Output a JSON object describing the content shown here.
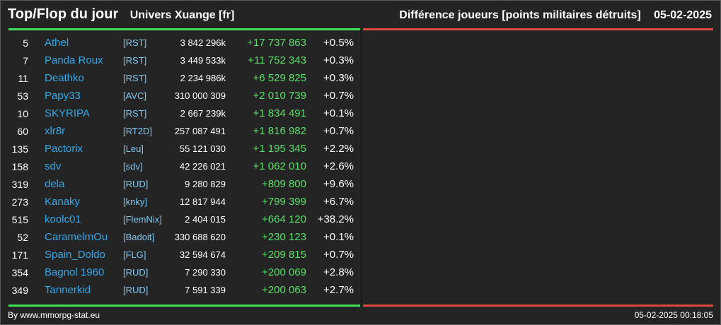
{
  "header": {
    "title": "Top/Flop du jour",
    "universe": "Univers Xuange [fr]",
    "metric": "Différence joueurs [points militaires détruits]",
    "date": "05-02-2025"
  },
  "colors": {
    "top_bar": "#44e05a",
    "flop_bar": "#e0483d",
    "player_link": "#35a7e8",
    "alliance_tag": "#7fc8f2",
    "positive_diff": "#5ae06a"
  },
  "top": [
    {
      "rank": "5",
      "player": "Athel",
      "alliance": "[RST]",
      "points": "3 842 296k",
      "diff": "+17 737 863",
      "pct": "+0.5%"
    },
    {
      "rank": "7",
      "player": "Panda Roux",
      "alliance": "[RST]",
      "points": "3 449 533k",
      "diff": "+11 752 343",
      "pct": "+0.3%"
    },
    {
      "rank": "11",
      "player": "Deathko",
      "alliance": "[RST]",
      "points": "2 234 986k",
      "diff": "+6 529 825",
      "pct": "+0.3%"
    },
    {
      "rank": "53",
      "player": "Papy33",
      "alliance": "[AVC]",
      "points": "310 000 309",
      "diff": "+2 010 739",
      "pct": "+0.7%"
    },
    {
      "rank": "10",
      "player": "SKYRIPA",
      "alliance": "[RST]",
      "points": "2 667 239k",
      "diff": "+1 834 491",
      "pct": "+0.1%"
    },
    {
      "rank": "60",
      "player": "xlr8r",
      "alliance": "[RT2D]",
      "points": "257 087 491",
      "diff": "+1 816 982",
      "pct": "+0.7%"
    },
    {
      "rank": "135",
      "player": "Pactorix",
      "alliance": "[Leu]",
      "points": "55 121 030",
      "diff": "+1 195 345",
      "pct": "+2.2%"
    },
    {
      "rank": "158",
      "player": "sdv",
      "alliance": "[sdv]",
      "points": "42 226 021",
      "diff": "+1 062 010",
      "pct": "+2.6%"
    },
    {
      "rank": "319",
      "player": "dela",
      "alliance": "[RUD]",
      "points": "9 280 829",
      "diff": "+809 800",
      "pct": "+9.6%"
    },
    {
      "rank": "273",
      "player": "Kanaky",
      "alliance": "[knky]",
      "points": "12 817 944",
      "diff": "+799 399",
      "pct": "+6.7%"
    },
    {
      "rank": "515",
      "player": "koolc01",
      "alliance": "[FlemNix]",
      "points": "2 404 015",
      "diff": "+664 120",
      "pct": "+38.2%"
    },
    {
      "rank": "52",
      "player": "CaramelmOu",
      "alliance": "[Badoit]",
      "points": "330 688 620",
      "diff": "+230 123",
      "pct": "+0.1%"
    },
    {
      "rank": "171",
      "player": "Spain_Doldo",
      "alliance": "[FLG]",
      "points": "32 594 674",
      "diff": "+209 815",
      "pct": "+0.7%"
    },
    {
      "rank": "354",
      "player": "Bagnol 1960",
      "alliance": "[RUD]",
      "points": "7 290 330",
      "diff": "+200 069",
      "pct": "+2.8%"
    },
    {
      "rank": "349",
      "player": "Tannerkid",
      "alliance": "[RUD]",
      "points": "7 591 339",
      "diff": "+200 063",
      "pct": "+2.7%"
    }
  ],
  "footer": {
    "source": "By www.mmorpg-stat.eu",
    "timestamp": "05-02-2025 00:18:05"
  }
}
